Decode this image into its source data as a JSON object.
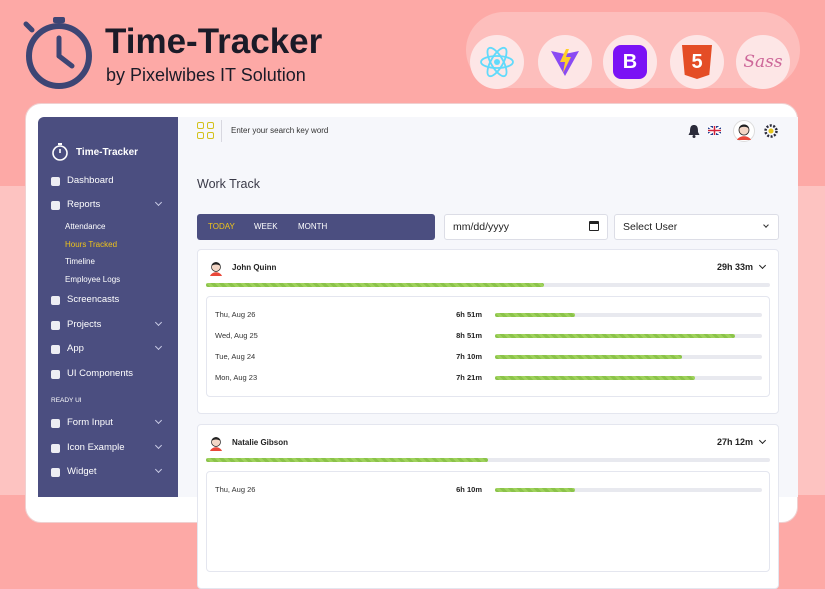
{
  "header": {
    "title": "Time-Tracker",
    "subtitle": "by Pixelwibes IT Solution",
    "tech_labels": [
      "B",
      "5",
      "Sass"
    ]
  },
  "sidebar": {
    "brand": "Time-Tracker",
    "items": [
      "Dashboard",
      "Reports"
    ],
    "reports_submenu": [
      "Attendance",
      "Hours Tracked",
      "Timeline",
      "Employee Logs"
    ],
    "items_2": [
      "Screencasts",
      "Projects",
      "App",
      "UI Components"
    ],
    "section": "READY UI",
    "items_3": [
      "Form Input",
      "Icon Example",
      "Widget"
    ]
  },
  "topbar": {
    "search_placeholder": "Enter your search key word"
  },
  "page": {
    "title": "Work Track",
    "tabs": [
      "TODAY",
      "WEEK",
      "MONTH"
    ],
    "date_placeholder": "mm/dd/yyyy",
    "user_select": "Select User"
  },
  "employees": [
    {
      "name": "John Quinn",
      "total": "29h 33m",
      "days": [
        {
          "date": "Thu, Aug 26",
          "time": "6h 51m"
        },
        {
          "date": "Wed, Aug 25",
          "time": "8h 51m"
        },
        {
          "date": "Tue, Aug 24",
          "time": "7h 10m"
        },
        {
          "date": "Mon, Aug 23",
          "time": "7h 21m"
        }
      ]
    },
    {
      "name": "Natalie Gibson",
      "total": "27h 12m",
      "days": [
        {
          "date": "Thu, Aug 26",
          "time": "6h 10m"
        }
      ]
    }
  ]
}
